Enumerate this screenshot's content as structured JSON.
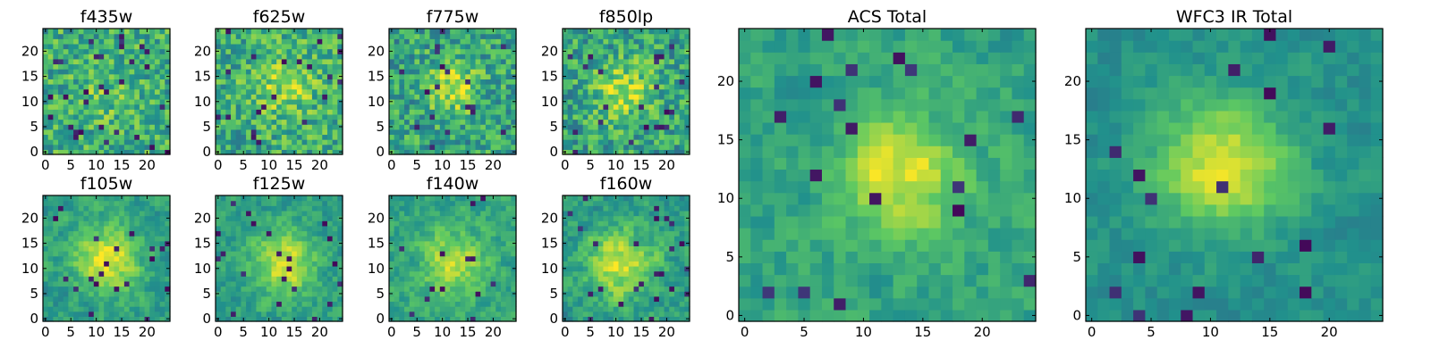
{
  "figure": {
    "colormap": "viridis",
    "colormap_stops": [
      "#440154",
      "#3b528b",
      "#21918c",
      "#5ec962",
      "#fde725"
    ],
    "frame_color": "#000000"
  },
  "chart_data": [
    {
      "type": "heatmap",
      "title": "f435w",
      "size": 25,
      "xlim": [
        0,
        24
      ],
      "ylim": [
        0,
        24
      ],
      "xticks": [
        0,
        5,
        10,
        15,
        20
      ],
      "yticks": [
        0,
        5,
        10,
        15,
        20
      ],
      "center": [
        12,
        12
      ],
      "peak_strength": 0.12,
      "peak_radius": 4,
      "base_level": 0.62,
      "noise_level": 0.22,
      "dark_pixel_rate": 0.05
    },
    {
      "type": "heatmap",
      "title": "f625w",
      "size": 25,
      "xlim": [
        0,
        24
      ],
      "ylim": [
        0,
        24
      ],
      "xticks": [
        0,
        5,
        10,
        15,
        20
      ],
      "yticks": [
        0,
        5,
        10,
        15,
        20
      ],
      "center": [
        13,
        13
      ],
      "peak_strength": 0.22,
      "peak_radius": 4,
      "base_level": 0.62,
      "noise_level": 0.22,
      "dark_pixel_rate": 0.04
    },
    {
      "type": "heatmap",
      "title": "f775w",
      "size": 25,
      "xlim": [
        0,
        24
      ],
      "ylim": [
        0,
        24
      ],
      "xticks": [
        0,
        5,
        10,
        15,
        20
      ],
      "yticks": [
        0,
        5,
        10,
        15,
        20
      ],
      "center": [
        12,
        13
      ],
      "peak_strength": 0.35,
      "peak_radius": 3.5,
      "base_level": 0.58,
      "noise_level": 0.22,
      "dark_pixel_rate": 0.04
    },
    {
      "type": "heatmap",
      "title": "f850lp",
      "size": 25,
      "xlim": [
        0,
        24
      ],
      "ylim": [
        0,
        24
      ],
      "xticks": [
        0,
        5,
        10,
        15,
        20
      ],
      "yticks": [
        0,
        5,
        10,
        15,
        20
      ],
      "center": [
        12,
        12
      ],
      "peak_strength": 0.3,
      "peak_radius": 4,
      "base_level": 0.58,
      "noise_level": 0.22,
      "dark_pixel_rate": 0.04
    },
    {
      "type": "heatmap",
      "title": "f105w",
      "size": 25,
      "xlim": [
        0,
        24
      ],
      "ylim": [
        0,
        24
      ],
      "xticks": [
        0,
        5,
        10,
        15,
        20
      ],
      "yticks": [
        0,
        5,
        10,
        15,
        20
      ],
      "center": [
        12,
        12
      ],
      "peak_strength": 0.42,
      "peak_radius": 4.5,
      "base_level": 0.55,
      "noise_level": 0.18,
      "dark_pixel_rate": 0.03
    },
    {
      "type": "heatmap",
      "title": "f125w",
      "size": 25,
      "xlim": [
        0,
        24
      ],
      "ylim": [
        0,
        24
      ],
      "xticks": [
        0,
        5,
        10,
        15,
        20
      ],
      "yticks": [
        0,
        5,
        10,
        15,
        20
      ],
      "center": [
        13,
        11
      ],
      "peak_strength": 0.4,
      "peak_radius": 4.5,
      "base_level": 0.55,
      "noise_level": 0.18,
      "dark_pixel_rate": 0.03
    },
    {
      "type": "heatmap",
      "title": "f140w",
      "size": 25,
      "xlim": [
        0,
        24
      ],
      "ylim": [
        0,
        24
      ],
      "xticks": [
        0,
        5,
        10,
        15,
        20
      ],
      "yticks": [
        0,
        5,
        10,
        15,
        20
      ],
      "center": [
        12,
        11
      ],
      "peak_strength": 0.32,
      "peak_radius": 4.5,
      "base_level": 0.58,
      "noise_level": 0.18,
      "dark_pixel_rate": 0.03
    },
    {
      "type": "heatmap",
      "title": "f160w",
      "size": 25,
      "xlim": [
        0,
        24
      ],
      "ylim": [
        0,
        24
      ],
      "xticks": [
        0,
        5,
        10,
        15,
        20
      ],
      "yticks": [
        0,
        5,
        10,
        15,
        20
      ],
      "center": [
        11,
        11
      ],
      "peak_strength": 0.4,
      "peak_radius": 4.5,
      "base_level": 0.55,
      "noise_level": 0.2,
      "dark_pixel_rate": 0.04
    },
    {
      "type": "heatmap",
      "title": "ACS Total",
      "size": 25,
      "xlim": [
        0,
        24
      ],
      "ylim": [
        0,
        24
      ],
      "xticks": [
        0,
        5,
        10,
        15,
        20
      ],
      "yticks": [
        0,
        5,
        10,
        15,
        20
      ],
      "center": [
        13,
        12
      ],
      "peak_strength": 0.38,
      "peak_radius": 3.5,
      "base_level": 0.58,
      "noise_level": 0.16,
      "dark_pixel_rate": 0.03
    },
    {
      "type": "heatmap",
      "title": "WFC3 IR Total",
      "size": 25,
      "xlim": [
        0,
        24
      ],
      "ylim": [
        0,
        24
      ],
      "xticks": [
        0,
        5,
        10,
        15,
        20
      ],
      "yticks": [
        0,
        5,
        10,
        15,
        20
      ],
      "center": [
        11,
        13
      ],
      "peak_strength": 0.45,
      "peak_radius": 4,
      "base_level": 0.5,
      "noise_level": 0.12,
      "dark_pixel_rate": 0.02
    }
  ]
}
